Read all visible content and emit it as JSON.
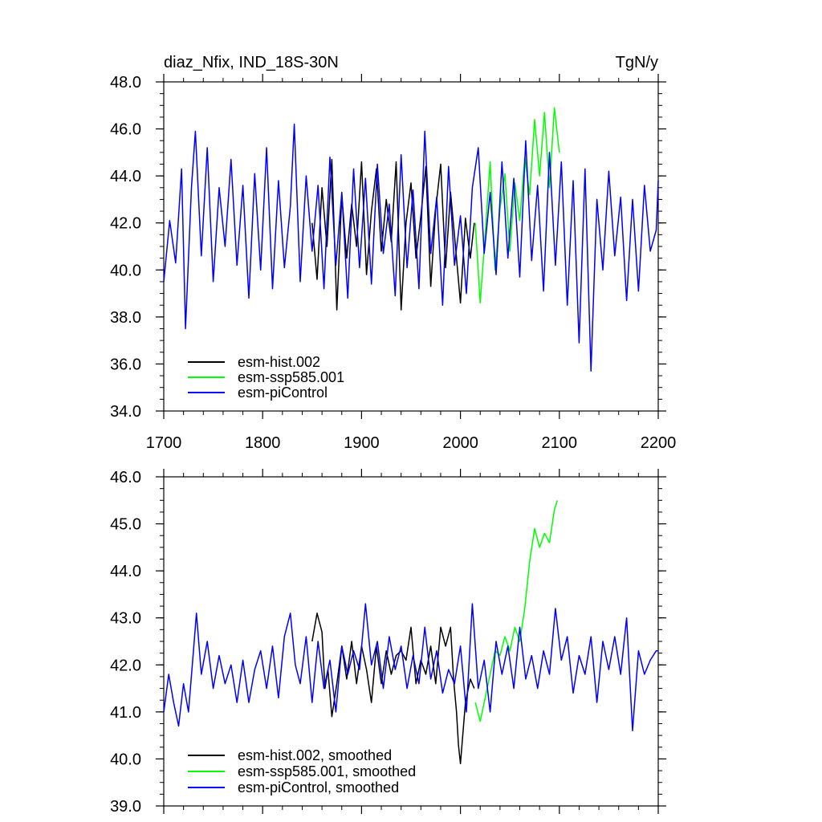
{
  "chart_data": [
    {
      "type": "line",
      "title": "diaz_Nfix, IND_18S-30N",
      "units": "TgN/y",
      "xlim": [
        1700,
        2200
      ],
      "ylim": [
        34.0,
        48.0
      ],
      "x_tick_labels": [
        "1700",
        "1800",
        "1900",
        "2000",
        "2100",
        "2200"
      ],
      "y_tick_labels": [
        "34.0",
        "36.0",
        "38.0",
        "40.0",
        "42.0",
        "44.0",
        "46.0",
        "48.0"
      ],
      "legend_position": "bottom-left",
      "series": [
        {
          "name": "esm-hist.002",
          "color": "#000000",
          "x": [
            1850,
            1855,
            1860,
            1865,
            1870,
            1875,
            1880,
            1885,
            1890,
            1895,
            1900,
            1905,
            1910,
            1915,
            1920,
            1925,
            1930,
            1935,
            1940,
            1945,
            1950,
            1955,
            1960,
            1965,
            1970,
            1975,
            1980,
            1985,
            1990,
            1995,
            2000,
            2005,
            2010,
            2014
          ],
          "values": [
            42.0,
            39.6,
            43.5,
            41.0,
            44.7,
            38.3,
            43.2,
            40.5,
            42.8,
            41.0,
            44.6,
            39.8,
            42.5,
            44.3,
            40.8,
            43.0,
            41.2,
            44.6,
            38.3,
            42.0,
            43.7,
            40.5,
            42.3,
            44.4,
            39.3,
            42.6,
            44.5,
            40.1,
            43.3,
            41.0,
            38.6,
            42.2,
            40.5,
            42.0
          ]
        },
        {
          "name": "esm-ssp585.001",
          "color": "#00ff00",
          "x": [
            2015,
            2020,
            2025,
            2030,
            2035,
            2040,
            2045,
            2050,
            2055,
            2060,
            2065,
            2070,
            2075,
            2080,
            2085,
            2090,
            2095,
            2100
          ],
          "values": [
            42.0,
            38.6,
            41.5,
            44.6,
            40.0,
            42.6,
            44.1,
            40.8,
            43.7,
            42.1,
            44.8,
            43.2,
            46.4,
            44.0,
            46.7,
            43.5,
            46.9,
            45.0
          ]
        },
        {
          "name": "esm-piControl",
          "color": "#0000ff",
          "x": [
            1700,
            1706,
            1712,
            1718,
            1722,
            1728,
            1732,
            1738,
            1744,
            1750,
            1756,
            1762,
            1768,
            1774,
            1780,
            1786,
            1792,
            1798,
            1804,
            1810,
            1816,
            1822,
            1828,
            1832,
            1838,
            1844,
            1850,
            1856,
            1862,
            1868,
            1874,
            1880,
            1886,
            1892,
            1898,
            1904,
            1910,
            1916,
            1922,
            1928,
            1934,
            1940,
            1946,
            1952,
            1958,
            1964,
            1970,
            1976,
            1982,
            1988,
            1994,
            2000,
            2006,
            2012,
            2018,
            2024,
            2030,
            2036,
            2042,
            2048,
            2054,
            2060,
            2066,
            2072,
            2078,
            2084,
            2090,
            2096,
            2102,
            2108,
            2114,
            2120,
            2126,
            2132,
            2138,
            2144,
            2150,
            2156,
            2162,
            2168,
            2174,
            2180,
            2186,
            2192,
            2198,
            2200
          ],
          "values": [
            39.5,
            42.1,
            40.3,
            44.3,
            37.5,
            43.5,
            45.9,
            40.6,
            45.2,
            39.5,
            43.5,
            41.0,
            44.7,
            40.2,
            43.6,
            38.8,
            44.1,
            40.0,
            45.2,
            39.2,
            43.8,
            40.1,
            42.7,
            46.2,
            39.5,
            44.0,
            40.8,
            43.6,
            39.2,
            44.8,
            40.2,
            43.3,
            38.8,
            44.3,
            40.1,
            43.9,
            39.4,
            44.5,
            40.7,
            42.8,
            38.9,
            44.9,
            40.1,
            43.4,
            39.2,
            45.9,
            40.7,
            43.1,
            38.5,
            44.4,
            40.2,
            42.3,
            39.0,
            43.5,
            45.2,
            40.7,
            43.3,
            39.8,
            44.6,
            40.5,
            43.9,
            39.7,
            45.5,
            40.4,
            43.6,
            39.1,
            45.0,
            40.2,
            44.6,
            38.5,
            43.8,
            36.9,
            44.3,
            35.7,
            43.0,
            40.0,
            44.2,
            40.6,
            43.1,
            38.7,
            43.0,
            39.1,
            43.6,
            40.8,
            41.7,
            43.8
          ]
        }
      ]
    },
    {
      "type": "line",
      "xlim": [
        1700,
        2200
      ],
      "ylim": [
        39.0,
        46.0
      ],
      "y_tick_labels": [
        "39.0",
        "40.0",
        "41.0",
        "42.0",
        "43.0",
        "44.0",
        "45.0",
        "46.0"
      ],
      "legend_position": "bottom-left",
      "series": [
        {
          "name": "esm-hist.002, smoothed",
          "color": "#000000",
          "x": [
            1850,
            1855,
            1860,
            1863,
            1866,
            1870,
            1875,
            1880,
            1885,
            1890,
            1895,
            1900,
            1905,
            1910,
            1915,
            1920,
            1925,
            1930,
            1935,
            1940,
            1945,
            1950,
            1955,
            1960,
            1965,
            1970,
            1975,
            1980,
            1985,
            1990,
            1993,
            1996,
            1998,
            2000,
            2005,
            2010,
            2014
          ],
          "values": [
            42.5,
            43.1,
            42.7,
            41.5,
            41.9,
            40.9,
            41.6,
            42.4,
            41.7,
            42.5,
            41.6,
            42.4,
            41.9,
            41.2,
            42.4,
            41.6,
            42.3,
            41.8,
            42.2,
            42.3,
            42.1,
            42.8,
            41.6,
            42.1,
            41.8,
            42.4,
            41.6,
            42.8,
            42.4,
            42.8,
            41.7,
            41.0,
            40.3,
            39.9,
            41.2,
            41.7,
            41.5
          ]
        },
        {
          "name": "esm-ssp585.001, smoothed",
          "color": "#00ff00",
          "x": [
            2015,
            2020,
            2025,
            2030,
            2035,
            2040,
            2045,
            2050,
            2055,
            2060,
            2065,
            2070,
            2075,
            2080,
            2085,
            2090,
            2095,
            2098
          ],
          "values": [
            41.2,
            40.8,
            41.3,
            41.8,
            42.3,
            42.2,
            42.6,
            42.3,
            42.8,
            42.5,
            43.2,
            44.2,
            44.9,
            44.5,
            44.8,
            44.6,
            45.3,
            45.5
          ]
        },
        {
          "name": "esm-piControl, smoothed",
          "color": "#0000ff",
          "x": [
            1700,
            1705,
            1710,
            1715,
            1720,
            1725,
            1730,
            1733,
            1738,
            1744,
            1750,
            1756,
            1762,
            1768,
            1774,
            1780,
            1786,
            1792,
            1798,
            1804,
            1810,
            1816,
            1822,
            1828,
            1833,
            1838,
            1844,
            1850,
            1856,
            1862,
            1868,
            1874,
            1880,
            1886,
            1892,
            1898,
            1904,
            1910,
            1916,
            1922,
            1928,
            1934,
            1940,
            1946,
            1952,
            1958,
            1964,
            1970,
            1976,
            1982,
            1988,
            1994,
            2000,
            2006,
            2012,
            2018,
            2024,
            2030,
            2036,
            2042,
            2048,
            2054,
            2060,
            2066,
            2072,
            2078,
            2084,
            2090,
            2096,
            2102,
            2108,
            2114,
            2120,
            2126,
            2132,
            2138,
            2144,
            2150,
            2156,
            2162,
            2168,
            2174,
            2180,
            2186,
            2192,
            2198,
            2200
          ],
          "values": [
            41.0,
            41.8,
            41.2,
            40.7,
            41.6,
            41.0,
            42.3,
            43.1,
            41.8,
            42.5,
            41.5,
            42.2,
            41.6,
            42.0,
            41.2,
            42.1,
            41.2,
            41.9,
            42.3,
            41.5,
            42.4,
            41.3,
            42.6,
            43.1,
            42.0,
            41.6,
            42.6,
            41.2,
            42.5,
            41.5,
            42.1,
            41.0,
            42.4,
            41.8,
            42.3,
            41.9,
            43.3,
            42.0,
            42.5,
            41.5,
            42.6,
            41.9,
            42.4,
            41.5,
            42.2,
            41.6,
            42.8,
            41.7,
            42.3,
            41.4,
            41.9,
            41.6,
            42.4,
            41.0,
            43.3,
            41.5,
            42.1,
            41.0,
            42.5,
            41.8,
            42.4,
            41.5,
            42.8,
            41.7,
            42.2,
            41.5,
            42.3,
            41.8,
            43.2,
            42.1,
            42.6,
            41.4,
            42.2,
            41.8,
            42.6,
            41.2,
            42.5,
            41.9,
            42.6,
            41.8,
            43.0,
            40.6,
            42.3,
            41.8,
            42.1,
            42.3,
            42.3
          ]
        }
      ]
    }
  ]
}
